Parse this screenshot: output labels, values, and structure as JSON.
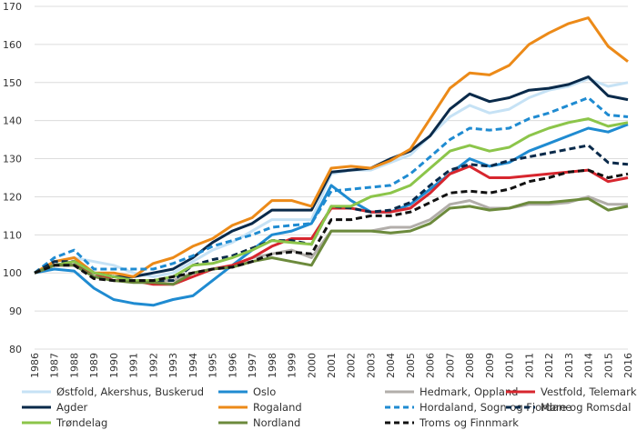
{
  "chart_data": {
    "type": "line",
    "title": "",
    "xlabel": "",
    "ylabel": "",
    "x": [
      "1986",
      "1987",
      "1988",
      "1989",
      "1990",
      "1991",
      "1992",
      "1993",
      "1994",
      "1995",
      "1996",
      "1997",
      "1998",
      "1999",
      "2000",
      "2001",
      "2002",
      "2003",
      "2004",
      "2005",
      "2006",
      "2007",
      "2008",
      "2009",
      "2010",
      "2011",
      "2012",
      "2013",
      "2014",
      "2015",
      "2016"
    ],
    "ylim": [
      80,
      170
    ],
    "yticks": [
      80,
      90,
      100,
      110,
      120,
      130,
      140,
      150,
      160,
      170
    ],
    "grid": "horizontal",
    "legend_position": "bottom",
    "series": [
      {
        "name": "Østfold, Akershus, Buskerud",
        "color": "#c6e2f5",
        "dash": "solid",
        "values": [
          100,
          103,
          104,
          103,
          102,
          100,
          99,
          100,
          103,
          106,
          108,
          111,
          114,
          114,
          114,
          126,
          127,
          127,
          129,
          131,
          136,
          141,
          144,
          142,
          143,
          146,
          148,
          149,
          151,
          149,
          150
        ]
      },
      {
        "name": "Oslo",
        "color": "#1f8bd1",
        "dash": "solid",
        "values": [
          100,
          101,
          100.5,
          96,
          93,
          92,
          91.5,
          93,
          94,
          98,
          102,
          106,
          110,
          111,
          113,
          123,
          119,
          116,
          116,
          118,
          122,
          126,
          130,
          128,
          129,
          132,
          134,
          136,
          138,
          137,
          139
        ]
      },
      {
        "name": "Hedmark, Oppland",
        "color": "#b2aeaa",
        "dash": "solid",
        "values": [
          100,
          102,
          103,
          99,
          99,
          98,
          98,
          98,
          100,
          101,
          102,
          104,
          105,
          106,
          104,
          111,
          111,
          111,
          112,
          112,
          114,
          118,
          119,
          117,
          117,
          118,
          118,
          118.5,
          120,
          118,
          118
        ]
      },
      {
        "name": "Vestfold, Telemark",
        "color": "#d7262e",
        "dash": "solid",
        "values": [
          100,
          102,
          102,
          100,
          98,
          98,
          97,
          97,
          99,
          101,
          102,
          104,
          107,
          109,
          109,
          117,
          117,
          116,
          116,
          117,
          121,
          126,
          128,
          125,
          125,
          125.5,
          126,
          126.5,
          127,
          124,
          125
        ]
      },
      {
        "name": "Agder",
        "color": "#0a2a4a",
        "dash": "solid",
        "values": [
          100,
          102,
          103,
          100,
          99,
          99,
          100,
          101,
          104,
          108,
          111,
          113,
          116.5,
          116.5,
          116.5,
          126.5,
          127,
          127.5,
          130,
          132,
          136,
          143,
          147,
          145,
          146,
          148,
          148.5,
          149.5,
          151.5,
          146.5,
          145.5
        ]
      },
      {
        "name": "Rogaland",
        "color": "#ec8a18",
        "dash": "solid",
        "values": [
          100,
          103,
          104,
          100,
          100,
          99,
          102.5,
          104,
          107,
          109,
          112.5,
          114.5,
          119,
          119,
          117.5,
          127.5,
          128,
          127.5,
          129.5,
          132.5,
          140.5,
          148.5,
          152.5,
          152,
          154.5,
          160,
          163,
          165.5,
          167,
          159.5,
          155.5
        ]
      },
      {
        "name": "Hordaland, Sogn og Fjordane",
        "color": "#1f8bd1",
        "dash": "dashed",
        "values": [
          100,
          104,
          106,
          101,
          101,
          101,
          101,
          102.5,
          104.5,
          107,
          108.5,
          110,
          112,
          112.5,
          113,
          121.5,
          122,
          122.5,
          123,
          126,
          130.5,
          135,
          138,
          137.5,
          138,
          140.5,
          142,
          144,
          146,
          141.5,
          141
        ]
      },
      {
        "name": "Møre og Romsdal",
        "color": "#0a2a4a",
        "dash": "dashed",
        "values": [
          100,
          103,
          103,
          100,
          99,
          98,
          98,
          98,
          102,
          103.5,
          104.5,
          106.5,
          108.5,
          108.5,
          107.5,
          117.5,
          117,
          116,
          116.5,
          118.5,
          123,
          127,
          128.5,
          128,
          129.5,
          130.5,
          131.5,
          132.5,
          133.5,
          129,
          128.5
        ]
      },
      {
        "name": "Trøndelag",
        "color": "#8cc54a",
        "dash": "solid",
        "values": [
          100,
          102,
          103,
          100,
          99,
          98,
          98,
          99,
          102,
          102.5,
          104,
          106,
          108.5,
          108,
          107.5,
          117.5,
          117.5,
          120,
          121,
          123,
          127.5,
          132,
          133.5,
          132,
          133,
          136,
          138,
          139.5,
          140.5,
          138.5,
          139.5
        ]
      },
      {
        "name": "Nordland",
        "color": "#6c8a3c",
        "dash": "solid",
        "values": [
          100,
          102,
          102,
          99,
          98,
          97.5,
          97.5,
          97,
          100,
          101,
          101.5,
          103,
          104,
          103,
          102,
          111,
          111,
          111,
          110.5,
          111,
          113,
          117,
          117.5,
          116.5,
          117,
          118.5,
          118.5,
          119,
          119.5,
          116.5,
          117.5
        ]
      },
      {
        "name": "Troms og Finnmark",
        "color": "#111111",
        "dash": "dashed",
        "values": [
          100,
          102,
          102,
          98.5,
          98,
          98,
          98,
          99,
          100,
          101,
          101.5,
          103,
          105,
          105.5,
          105,
          114,
          114,
          115,
          115,
          116,
          118.5,
          121,
          121.5,
          121,
          122,
          124,
          125,
          126.5,
          127,
          125,
          126
        ]
      }
    ]
  }
}
